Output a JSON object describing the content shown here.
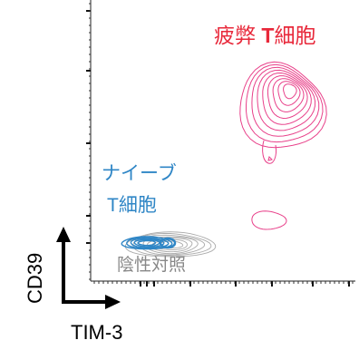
{
  "chart_data": {
    "type": "contour",
    "xlabel": "TIM-3",
    "ylabel": "CD39",
    "colors": {
      "exhausted": "#e8418a",
      "naive": "#2f86c6",
      "isotype": "#aaaaaa",
      "exhausted_label": "#e8283a",
      "naive_label": "#2f86c6",
      "isotype_label": "#888888",
      "axes": "#000000"
    },
    "populations": [
      {
        "key": "exhausted",
        "label_parts": [
          "疲弊 ",
          "T",
          "細胞"
        ],
        "levels": 9,
        "region": "high TIM-3 / high CD39"
      },
      {
        "key": "naive",
        "label_line1": "ナイーブ",
        "label_line2_parts": [
          "T",
          "細胞"
        ],
        "levels": 5,
        "region": "low TIM-3 / low CD39"
      },
      {
        "key": "isotype",
        "label": "陰性対照",
        "levels": 7,
        "region": "low TIM-3 / low CD39"
      }
    ]
  }
}
